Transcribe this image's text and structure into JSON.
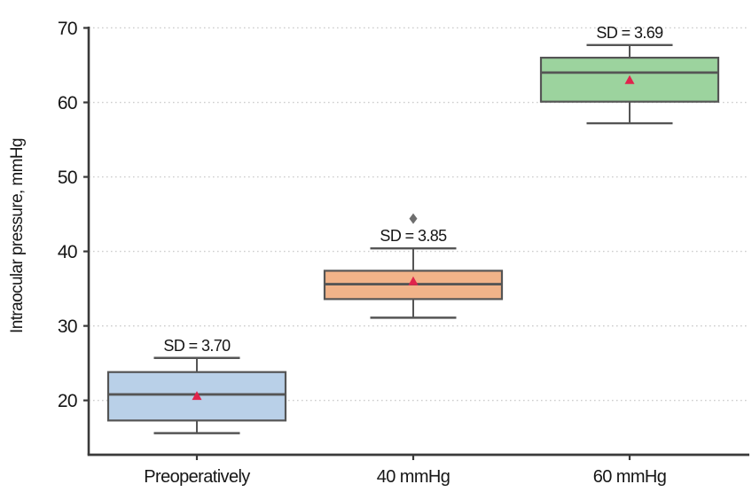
{
  "chart_data": {
    "type": "box",
    "title": "",
    "xlabel": "",
    "ylabel": "Intraocular pressure, mmHg",
    "ylim": [
      12.7,
      72.2
    ],
    "yticks": [
      20,
      30,
      40,
      50,
      60,
      70
    ],
    "grid": "horizontal-dotted",
    "legend": "none",
    "categories": [
      "Preoperatively",
      "40 mmHg",
      "60 mmHg"
    ],
    "series": [
      {
        "category": "Preoperatively",
        "whisker_low": 15.6,
        "q1": 17.3,
        "median": 20.8,
        "q3": 23.8,
        "whisker_high": 25.7,
        "mean": 20.6,
        "sd_label": "SD = 3.70",
        "outliers": [],
        "fill": "#b9d0e8"
      },
      {
        "category": "40 mmHg",
        "whisker_low": 31.1,
        "q1": 33.6,
        "median": 35.6,
        "q3": 37.4,
        "whisker_high": 40.4,
        "mean": 36.0,
        "sd_label": "SD = 3.85",
        "outliers": [
          44.4
        ],
        "fill": "#f1b389"
      },
      {
        "category": "60 mmHg",
        "whisker_low": 57.2,
        "q1": 60.1,
        "median": 64.0,
        "q3": 66.0,
        "whisker_high": 67.7,
        "mean": 63.0,
        "sd_label": "SD = 3.69",
        "outliers": [],
        "fill": "#9cd39e"
      }
    ],
    "mean_marker": {
      "shape": "triangle-up",
      "color": "#e0244c"
    },
    "outlier_marker": {
      "shape": "diamond",
      "color": "#6e6e6e"
    },
    "box_border_color": "#555555",
    "median_color": "#555555",
    "whisker_color": "#555555",
    "axis_color": "#3a3a3a",
    "grid_color": "#cdcdcd",
    "text_color": "#161616"
  }
}
